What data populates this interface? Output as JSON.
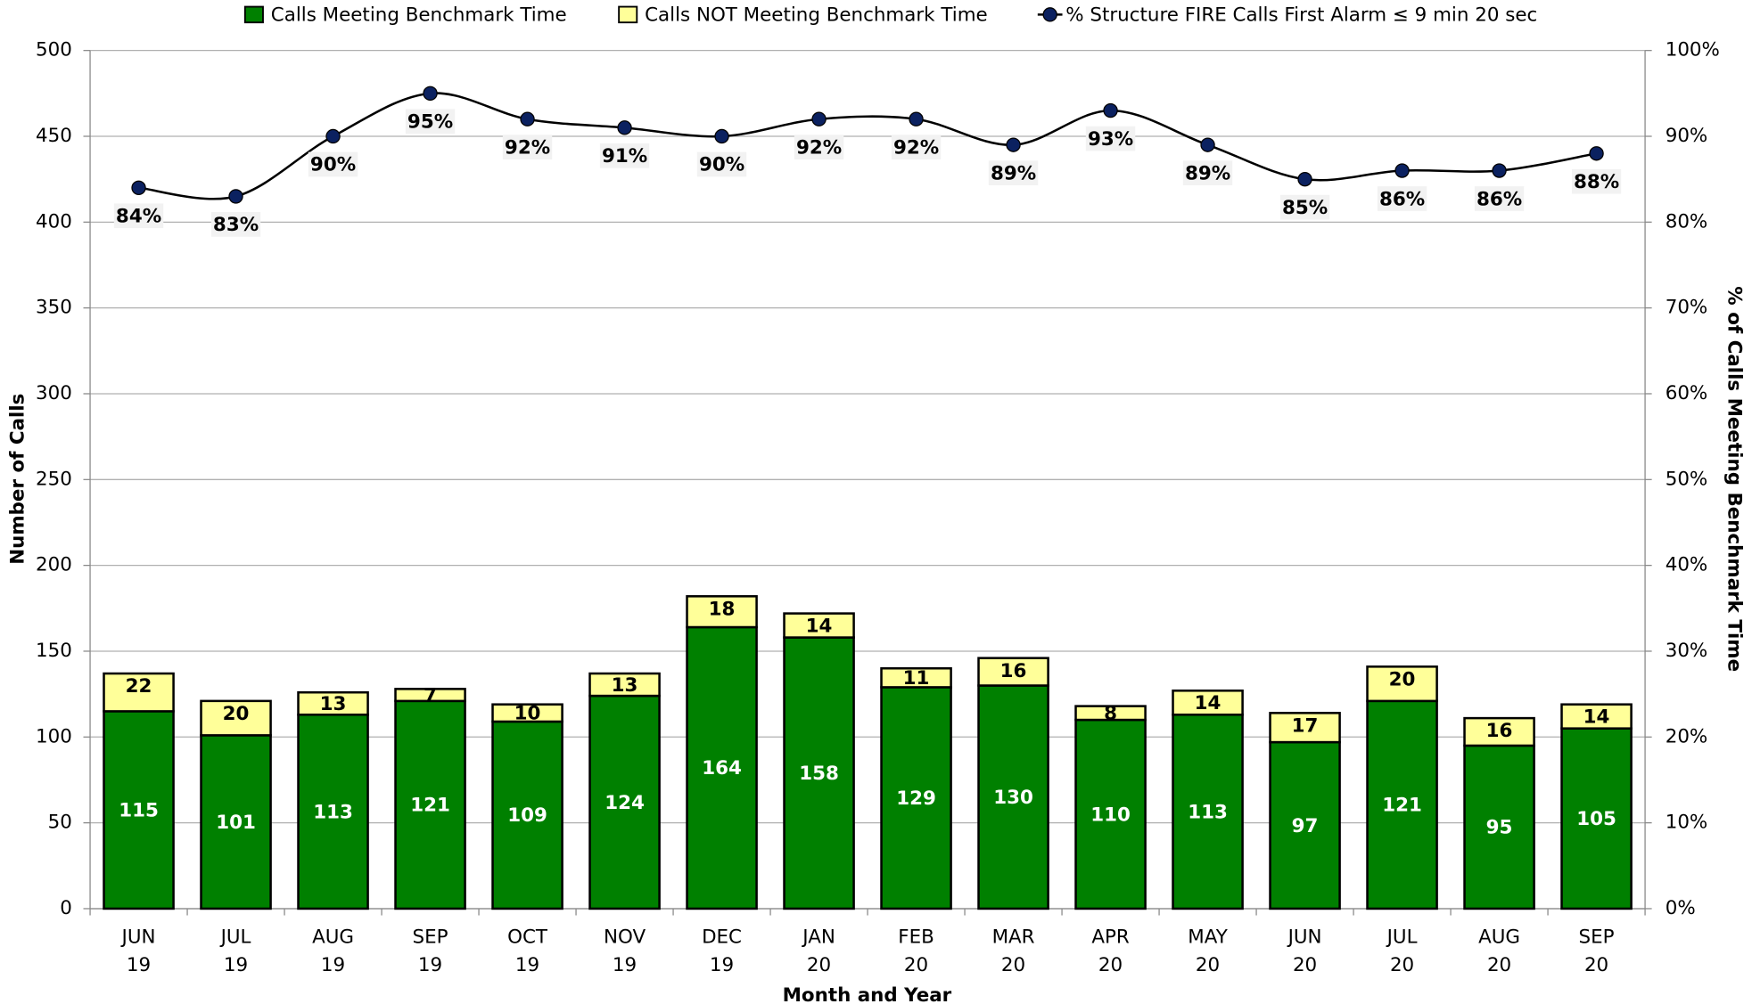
{
  "chart_data": {
    "type": "bar_line",
    "categories": [
      [
        "JUN",
        "19"
      ],
      [
        "JUL",
        "19"
      ],
      [
        "AUG",
        "19"
      ],
      [
        "SEP",
        "19"
      ],
      [
        "OCT",
        "19"
      ],
      [
        "NOV",
        "19"
      ],
      [
        "DEC",
        "19"
      ],
      [
        "JAN",
        "20"
      ],
      [
        "FEB",
        "20"
      ],
      [
        "MAR",
        "20"
      ],
      [
        "APR",
        "20"
      ],
      [
        "MAY",
        "20"
      ],
      [
        "JUN",
        "20"
      ],
      [
        "JUL",
        "20"
      ],
      [
        "AUG",
        "20"
      ],
      [
        "SEP",
        "20"
      ]
    ],
    "x_label": "Month and Year",
    "y_label": "Number of Calls",
    "y2_label": "% of Calls Meeting Benchmark Time",
    "ylim": [
      0,
      500
    ],
    "yticks": [
      0,
      50,
      100,
      150,
      200,
      250,
      300,
      350,
      400,
      450,
      500
    ],
    "y2lim": [
      0,
      100
    ],
    "y2ticks": [
      {
        "value": 0,
        "label": "0%"
      },
      {
        "value": 10,
        "label": "10%"
      },
      {
        "value": 20,
        "label": "20%"
      },
      {
        "value": 30,
        "label": "30%"
      },
      {
        "value": 40,
        "label": "40%"
      },
      {
        "value": 50,
        "label": "50%"
      },
      {
        "value": 60,
        "label": "60%"
      },
      {
        "value": 70,
        "label": "70%"
      },
      {
        "value": 80,
        "label": "80%"
      },
      {
        "value": 90,
        "label": "90%"
      },
      {
        "value": 100,
        "label": "100%"
      }
    ],
    "grid": true,
    "series": [
      {
        "name": "Calls Meeting Benchmark Time",
        "type": "stacked_bar",
        "color": "#008000",
        "label_color": "#ffffff",
        "values": [
          115,
          101,
          113,
          121,
          109,
          124,
          164,
          158,
          129,
          130,
          110,
          113,
          97,
          121,
          95,
          105
        ]
      },
      {
        "name": "Calls NOT Meeting Benchmark Time",
        "type": "stacked_bar",
        "color": "#ffff99",
        "label_color": "#000000",
        "values": [
          22,
          20,
          13,
          7,
          10,
          13,
          18,
          14,
          11,
          16,
          8,
          14,
          17,
          20,
          16,
          14
        ]
      },
      {
        "name": "% Structure FIRE Calls First Alarm ≤ 9 min 20 sec",
        "type": "line",
        "axis": "y2",
        "color": "#000000",
        "marker_color": "#0b2160",
        "values": [
          84,
          83,
          90,
          95,
          92,
          91,
          90,
          92,
          92,
          89,
          93,
          89,
          85,
          86,
          86,
          88
        ],
        "value_labels": [
          "84%",
          "83%",
          "90%",
          "95%",
          "92%",
          "91%",
          "90%",
          "92%",
          "92%",
          "89%",
          "93%",
          "89%",
          "85%",
          "86%",
          "86%",
          "88%"
        ]
      }
    ]
  }
}
